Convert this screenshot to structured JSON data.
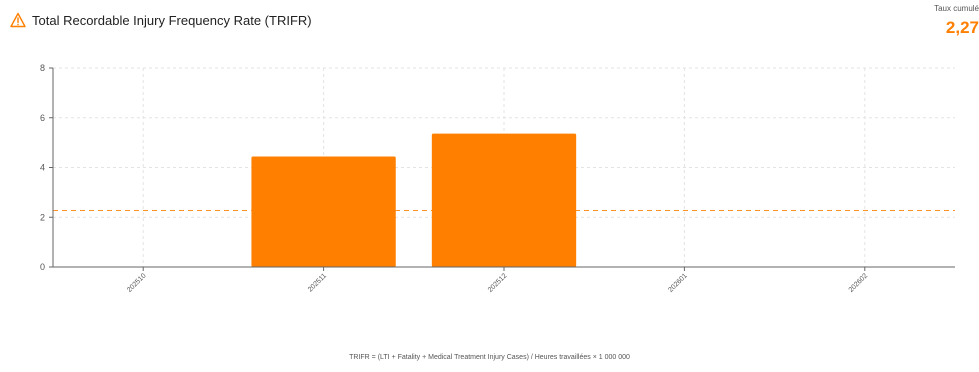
{
  "header": {
    "title": "Total Recordable Injury Frequency Rate (TRIFR)",
    "icon": "warning-triangle-icon",
    "icon_color": "#ff7f00"
  },
  "kpi": {
    "label": "Taux cumulé",
    "value": "2,27",
    "color": "#ff7f00"
  },
  "chart_data": {
    "type": "bar",
    "title": "Total Recordable Injury Frequency Rate (TRIFR)",
    "categories": [
      "202510",
      "202511",
      "202512",
      "202601",
      "202602"
    ],
    "values": [
      0,
      4.44,
      5.36,
      0,
      0
    ],
    "ylim": [
      0,
      8
    ],
    "yticks": [
      0,
      2,
      4,
      6,
      8
    ],
    "reference_line": {
      "value": 2.27,
      "style": "dashed"
    },
    "bar_color": "#ff7f00",
    "grid": true,
    "xlabel": "",
    "ylabel": ""
  },
  "footnote": "TRIFR = (LTI + Fatality + Medical Treatment Injury Cases) / Heures travaillées × 1 000 000"
}
